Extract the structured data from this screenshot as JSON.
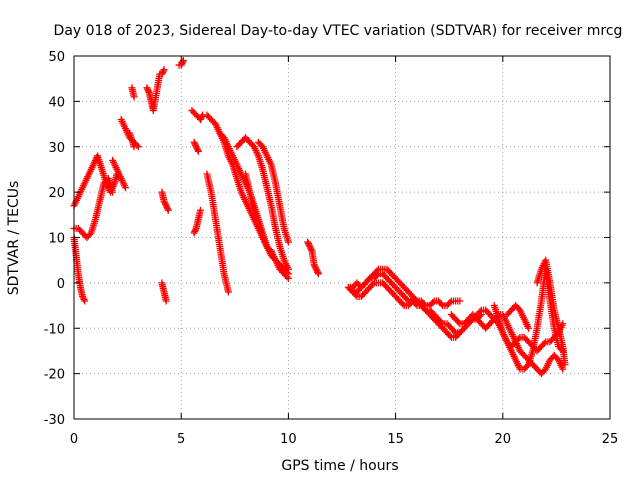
{
  "chart_data": {
    "type": "scatter",
    "title": "Day 018 of 2023, Sidereal Day-to-day VTEC variation (SDTVAR) for receiver mrcg",
    "xlabel": "GPS time / hours",
    "ylabel": "SDTVAR / TECUs",
    "xlim": [
      0,
      25
    ],
    "ylim": [
      -30,
      50
    ],
    "xticks": [
      0,
      5,
      10,
      15,
      20,
      25
    ],
    "yticks": [
      -30,
      -20,
      -10,
      0,
      10,
      20,
      30,
      40,
      50
    ],
    "grid": true,
    "marker": "+",
    "color": "#ff0000",
    "series": [
      {
        "name": "s1",
        "x": [
          0.0,
          0.2,
          0.4,
          0.6,
          0.8,
          1.0,
          1.1,
          1.3,
          1.5,
          1.7,
          1.9,
          2.0
        ],
        "y": [
          17,
          19,
          21,
          23,
          25,
          27,
          28,
          25,
          22,
          20,
          22,
          24
        ]
      },
      {
        "name": "s2",
        "x": [
          0.0,
          0.1,
          0.2,
          0.3,
          0.4,
          0.5
        ],
        "y": [
          10,
          6,
          2,
          -1,
          -3,
          -4
        ]
      },
      {
        "name": "s3",
        "x": [
          0.0,
          0.2,
          0.4,
          0.6,
          0.8,
          1.0,
          1.2,
          1.4,
          1.6,
          1.8
        ],
        "y": [
          12,
          12,
          11,
          10,
          11,
          14,
          18,
          22,
          23,
          20
        ]
      },
      {
        "name": "s4",
        "x": [
          1.8,
          2.0,
          2.2,
          2.4,
          2.6,
          2.8
        ],
        "y": [
          27,
          25,
          23,
          21,
          33,
          30
        ]
      },
      {
        "name": "s5",
        "x": [
          2.2,
          2.4,
          2.6,
          2.8,
          3.0
        ],
        "y": [
          36,
          34,
          32,
          31,
          30
        ]
      },
      {
        "name": "s6",
        "x": [
          2.7,
          2.8,
          3.4,
          3.5,
          3.6,
          3.7,
          4.0,
          4.1,
          4.2
        ],
        "y": [
          43,
          41,
          43,
          42,
          40,
          38,
          46,
          46,
          47
        ]
      },
      {
        "name": "s7",
        "x": [
          4.1,
          4.2,
          4.3,
          4.4
        ],
        "y": [
          20,
          18,
          17,
          16
        ]
      },
      {
        "name": "s8",
        "x": [
          4.1,
          4.2,
          4.3
        ],
        "y": [
          0,
          -2,
          -4
        ]
      },
      {
        "name": "s9",
        "x": [
          4.9,
          5.0,
          5.1
        ],
        "y": [
          48,
          48,
          49
        ]
      },
      {
        "name": "s10",
        "x": [
          5.5,
          5.7,
          5.9,
          6.0
        ],
        "y": [
          38,
          37,
          36,
          37
        ]
      },
      {
        "name": "s11",
        "x": [
          5.6,
          5.7,
          5.8
        ],
        "y": [
          31,
          30,
          29
        ]
      },
      {
        "name": "s12",
        "x": [
          5.6,
          5.7,
          5.8,
          5.9
        ],
        "y": [
          11,
          12,
          14,
          16
        ]
      },
      {
        "name": "s13",
        "x": [
          6.2,
          6.4,
          6.6,
          6.8,
          7.0,
          7.2
        ],
        "y": [
          24,
          20,
          14,
          8,
          2,
          -2
        ]
      },
      {
        "name": "s14",
        "x": [
          6.8,
          7.0,
          7.2,
          7.4,
          7.6,
          7.8,
          8.0,
          8.2,
          8.4,
          8.6,
          8.8,
          9.0,
          9.2,
          9.4,
          9.6,
          9.8,
          10.0
        ],
        "y": [
          33,
          31,
          28,
          26,
          23,
          20,
          18,
          16,
          14,
          12,
          10,
          8,
          7,
          5,
          4,
          3,
          2
        ]
      },
      {
        "name": "s15",
        "x": [
          6.2,
          6.4,
          6.6,
          6.8,
          7.0,
          7.2,
          7.4,
          7.6,
          7.8,
          8.0,
          8.2,
          8.4,
          8.6,
          8.8,
          9.0,
          9.2,
          9.4,
          9.6,
          9.8,
          10.0
        ],
        "y": [
          37,
          36,
          35,
          33,
          32,
          30,
          28,
          26,
          24,
          22,
          20,
          17,
          14,
          11,
          8,
          6,
          5,
          3,
          2,
          1
        ]
      },
      {
        "name": "s16",
        "x": [
          7.6,
          7.8,
          8.0,
          8.2,
          8.4,
          8.6,
          8.8,
          9.0,
          9.2,
          9.4,
          9.6,
          9.8,
          10.0
        ],
        "y": [
          30,
          31,
          32,
          31,
          30,
          28,
          25,
          21,
          17,
          12,
          8,
          5,
          3
        ]
      },
      {
        "name": "s17",
        "x": [
          8.6,
          8.8,
          9.0,
          9.2,
          9.4,
          9.6,
          9.8,
          10.0
        ],
        "y": [
          31,
          30,
          28,
          26,
          22,
          17,
          12,
          9
        ]
      },
      {
        "name": "s18",
        "x": [
          8.0,
          8.2,
          8.4,
          8.6,
          8.8,
          9.0,
          9.2
        ],
        "y": [
          24,
          20,
          16,
          13,
          10,
          8,
          7
        ]
      },
      {
        "name": "s19",
        "x": [
          10.9,
          11.0,
          11.1,
          11.2,
          11.3,
          11.4
        ],
        "y": [
          9,
          8,
          7,
          4,
          3,
          2
        ]
      },
      {
        "name": "s20",
        "x": [
          12.8,
          13.0,
          13.2,
          13.4,
          13.6,
          13.8,
          14.0,
          14.2,
          14.4,
          14.6,
          14.8,
          15.0,
          15.2,
          15.4,
          15.6,
          15.8,
          16.0,
          16.2,
          16.4,
          16.6,
          16.8,
          17.0,
          17.2,
          17.4,
          17.6,
          17.8,
          18.0
        ],
        "y": [
          -1,
          -1,
          0,
          -1,
          0,
          1,
          2,
          3,
          3,
          3,
          2,
          1,
          0,
          -1,
          -2,
          -3,
          -4,
          -4,
          -5,
          -5,
          -4,
          -4,
          -5,
          -5,
          -4,
          -4,
          -4
        ]
      },
      {
        "name": "s21",
        "x": [
          12.8,
          13.0,
          13.2,
          13.4,
          13.6,
          13.8,
          14.0,
          14.2,
          14.4,
          14.6,
          14.8,
          15.0,
          15.2,
          15.4,
          15.6,
          15.8,
          16.0,
          16.2,
          16.4,
          16.6,
          16.8,
          17.0,
          17.2,
          17.4,
          17.6,
          17.8,
          18.0
        ],
        "y": [
          -1,
          -2,
          -2,
          -1,
          0,
          1,
          1,
          2,
          2,
          1,
          0,
          -1,
          -2,
          -3,
          -4,
          -4,
          -5,
          -5,
          -6,
          -6,
          -7,
          -8,
          -9,
          -9,
          -10,
          -11,
          -11
        ]
      },
      {
        "name": "s22",
        "x": [
          13.0,
          13.2,
          13.4,
          13.6,
          13.8,
          14.0,
          14.2,
          14.4,
          14.6,
          14.8,
          15.0,
          15.2,
          15.4,
          15.6,
          15.8,
          16.0,
          16.2,
          16.4,
          16.6,
          16.8,
          17.0,
          17.2,
          17.4,
          17.6,
          17.8,
          18.0,
          18.2,
          18.4,
          18.6,
          18.8,
          19.0
        ],
        "y": [
          -2,
          -3,
          -3,
          -2,
          -1,
          0,
          0,
          0,
          -1,
          -2,
          -3,
          -4,
          -5,
          -5,
          -4,
          -4,
          -5,
          -6,
          -7,
          -8,
          -9,
          -10,
          -11,
          -12,
          -12,
          -11,
          -10,
          -9,
          -8,
          -8,
          -7
        ]
      },
      {
        "name": "s23",
        "x": [
          17.6,
          17.8,
          18.0,
          18.2,
          18.4,
          18.6,
          18.8,
          19.0,
          19.2,
          19.4,
          19.6,
          19.8,
          20.0,
          20.2,
          20.4,
          20.6,
          20.8,
          21.0,
          21.2,
          21.4,
          21.6,
          21.8,
          22.0,
          22.2,
          22.4,
          22.6,
          22.8
        ],
        "y": [
          -7,
          -8,
          -9,
          -9,
          -8,
          -7,
          -8,
          -9,
          -10,
          -9,
          -8,
          -9,
          -11,
          -13,
          -15,
          -17,
          -19,
          -19,
          -18,
          -15,
          -10,
          -4,
          3,
          -4,
          -10,
          -14,
          -15
        ]
      },
      {
        "name": "s24",
        "x": [
          18.6,
          18.8,
          19.0,
          19.2,
          19.4,
          19.6,
          19.8,
          20.0,
          20.2,
          20.4,
          20.6,
          20.8,
          21.0,
          21.2,
          21.4,
          21.6,
          21.8,
          22.0,
          22.2,
          22.4,
          22.6,
          22.8
        ],
        "y": [
          -8,
          -7,
          -6,
          -6,
          -7,
          -8,
          -7,
          -7,
          -9,
          -11,
          -13,
          -15,
          -16,
          -17,
          -18,
          -19,
          -20,
          -19,
          -17,
          -16,
          -17,
          -19
        ]
      },
      {
        "name": "s25",
        "x": [
          19.6,
          19.8,
          20.0,
          20.2,
          20.4,
          20.6,
          20.8,
          21.0,
          21.2,
          21.4,
          21.6,
          21.8,
          22.0,
          22.2,
          22.4,
          22.6,
          22.8
        ],
        "y": [
          -5,
          -8,
          -11,
          -13,
          -14,
          -13,
          -12,
          -12,
          -13,
          -14,
          -15,
          -14,
          -13,
          -13,
          -12,
          -11,
          -9
        ]
      },
      {
        "name": "s26",
        "x": [
          20.2,
          20.4,
          20.6,
          20.8,
          21.0,
          21.2
        ],
        "y": [
          -7,
          -6,
          -5,
          -6,
          -8,
          -10
        ]
      },
      {
        "name": "s27",
        "x": [
          21.6,
          21.8,
          22.0,
          22.2,
          22.4,
          22.6,
          22.8,
          22.9
        ],
        "y": [
          0,
          3,
          5,
          0,
          -6,
          -10,
          -14,
          -18
        ]
      }
    ]
  }
}
